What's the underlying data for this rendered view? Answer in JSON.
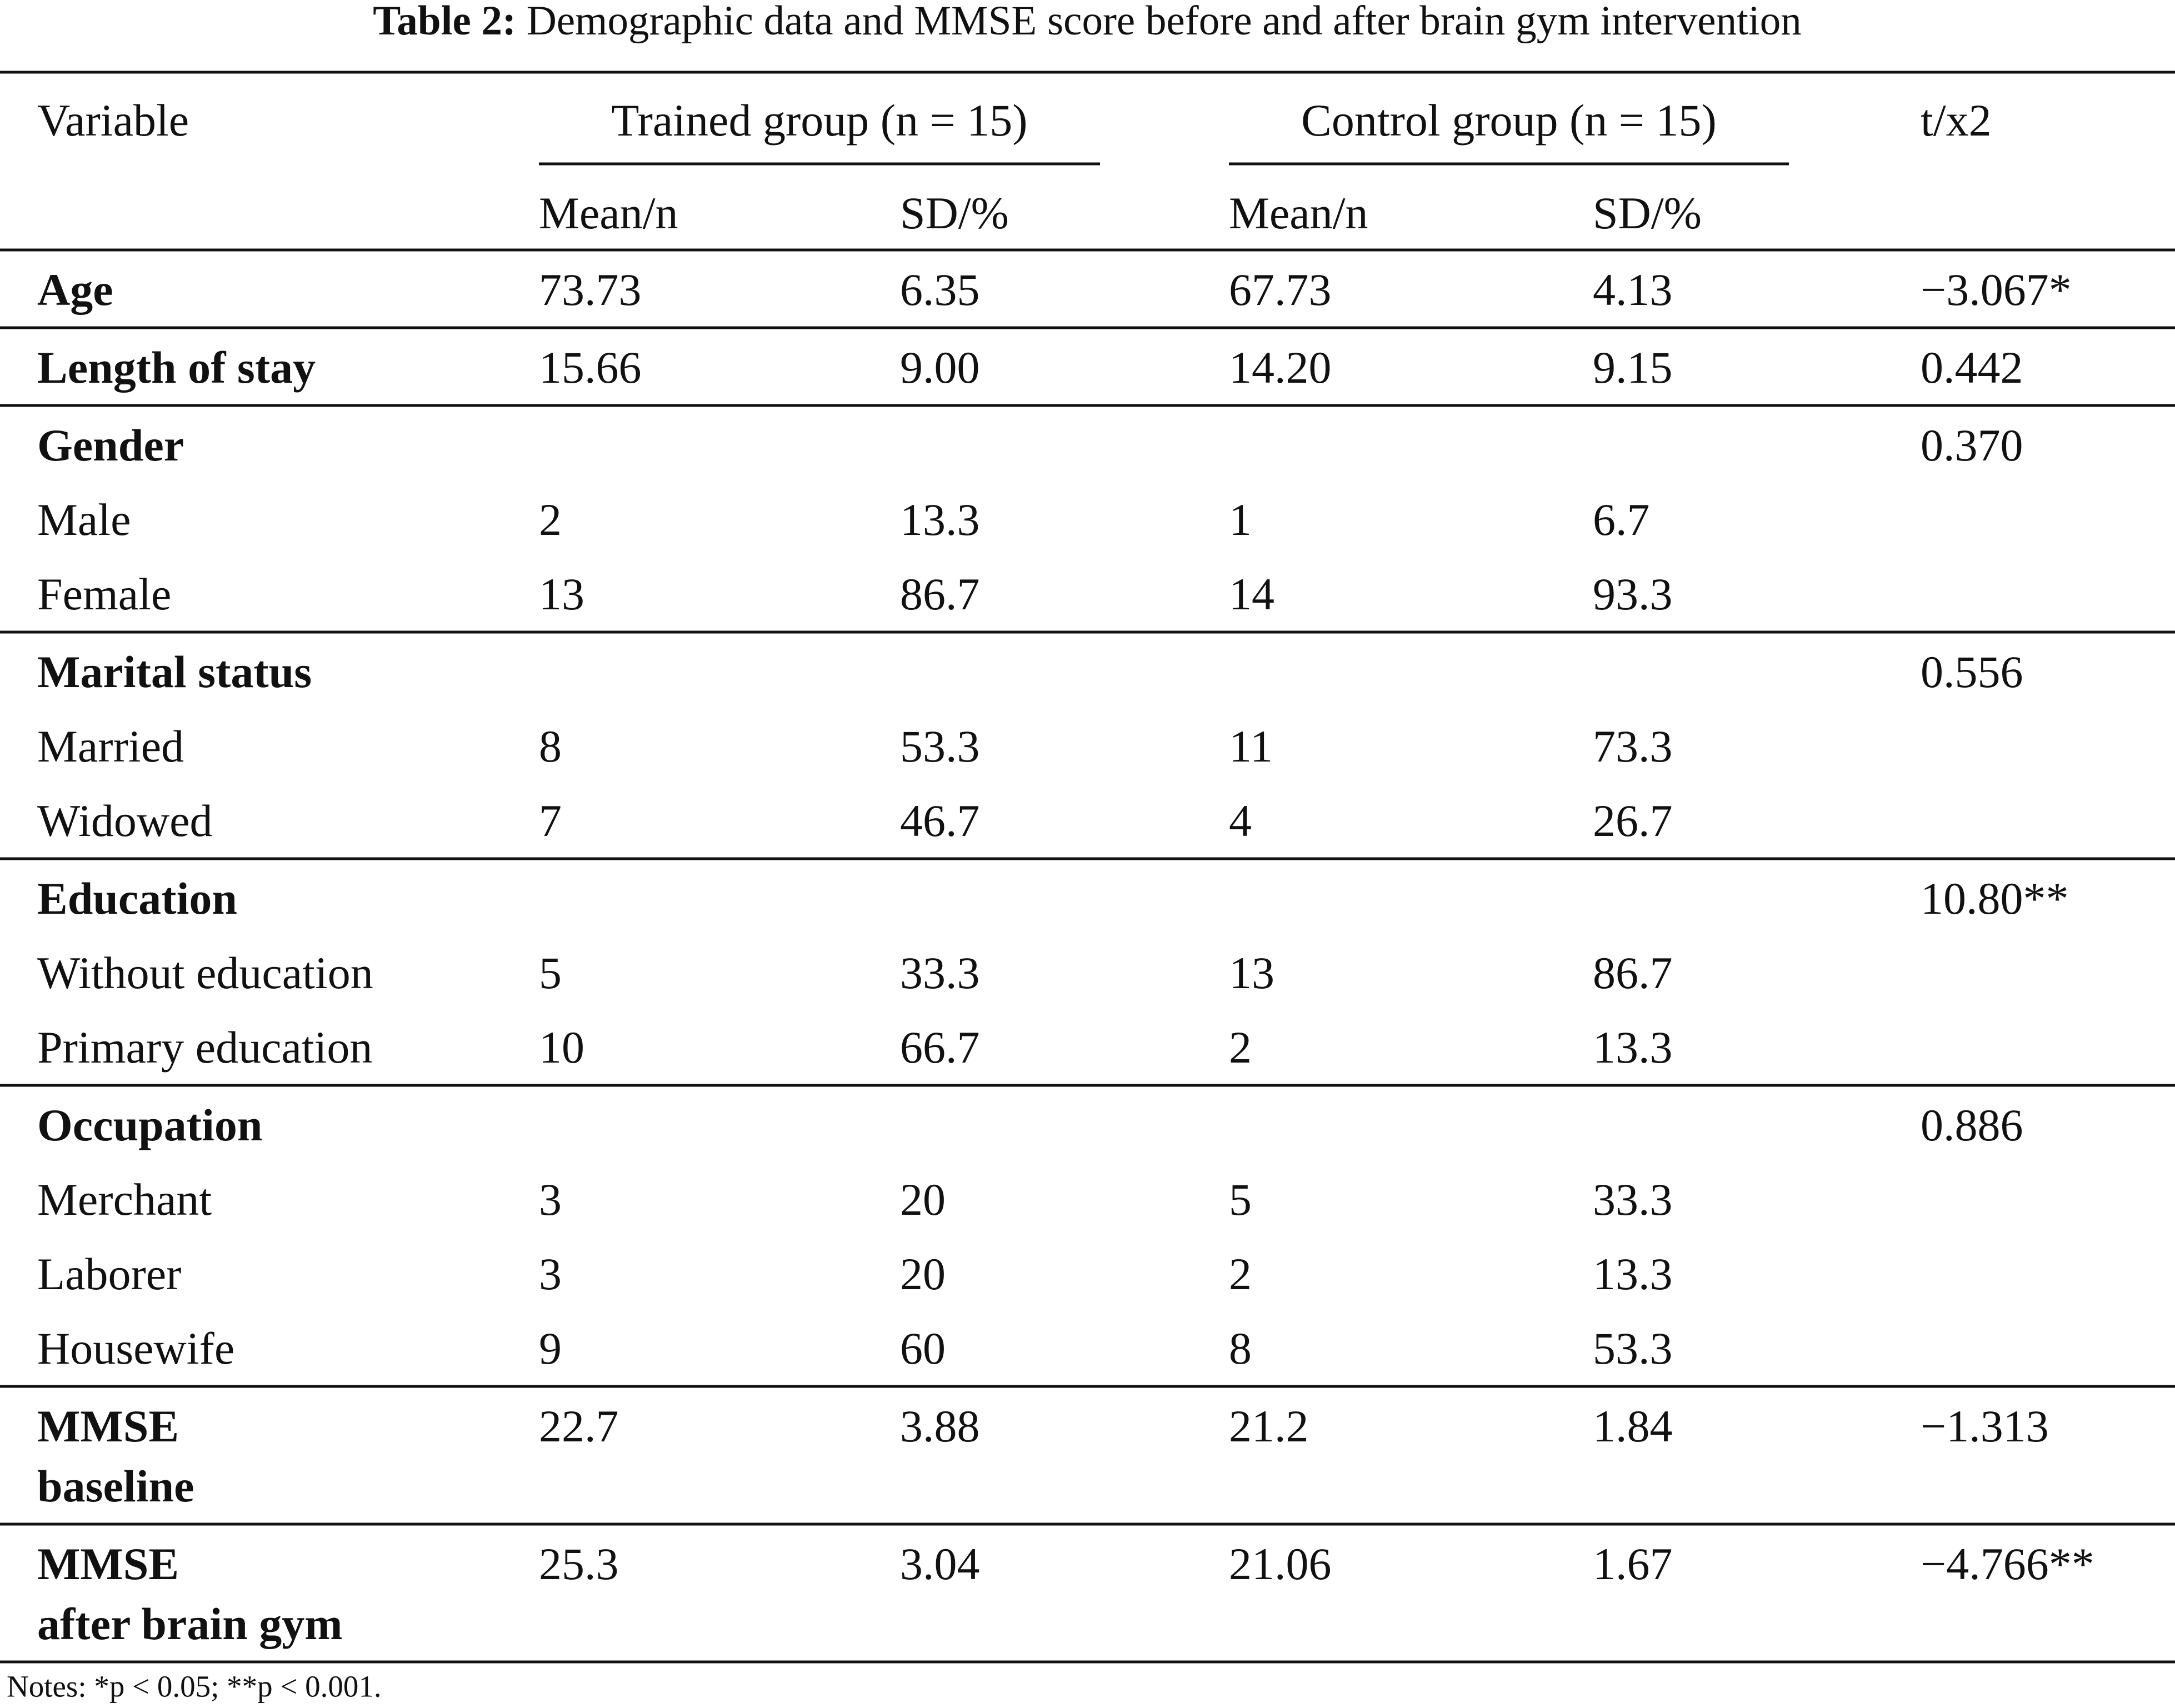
{
  "table": {
    "title_prefix": "Table 2:",
    "title": "Demographic data and MMSE score before and after brain gym intervention",
    "variable_header": "Variable",
    "group_headers": [
      "Trained group (n = 15)",
      "Control group (n = 15)"
    ],
    "sub_headers": [
      "Mean/n",
      "SD/%",
      "Mean/n",
      "SD/%"
    ],
    "stat_header": "t/x2",
    "sections": [
      {
        "label": [
          "Age"
        ],
        "values": [
          "73.73",
          "6.35",
          "67.73",
          "4.13"
        ],
        "stat": "−3.067*"
      },
      {
        "label": [
          "Length of stay"
        ],
        "values": [
          "15.66",
          "9.00",
          "14.20",
          "9.15"
        ],
        "stat": "0.442"
      },
      {
        "label": [
          "Gender"
        ],
        "stat": "0.370",
        "rows": [
          {
            "label": "Male",
            "values": [
              "2",
              "13.3",
              "1",
              "6.7"
            ]
          },
          {
            "label": "Female",
            "values": [
              "13",
              "86.7",
              "14",
              "93.3"
            ]
          }
        ]
      },
      {
        "label": [
          "Marital status"
        ],
        "stat": "0.556",
        "rows": [
          {
            "label": "Married",
            "values": [
              "8",
              "53.3",
              "11",
              "73.3"
            ]
          },
          {
            "label": "Widowed",
            "values": [
              "7",
              "46.7",
              "4",
              "26.7"
            ]
          }
        ]
      },
      {
        "label": [
          "Education"
        ],
        "stat": "10.80**",
        "rows": [
          {
            "label": "Without education",
            "values": [
              "5",
              "33.3",
              "13",
              "86.7"
            ]
          },
          {
            "label": "Primary education",
            "values": [
              "10",
              "66.7",
              "2",
              "13.3"
            ]
          }
        ]
      },
      {
        "label": [
          "Occupation"
        ],
        "stat": "0.886",
        "rows": [
          {
            "label": "Merchant",
            "values": [
              "3",
              "20",
              "5",
              "33.3"
            ]
          },
          {
            "label": "Laborer",
            "values": [
              "3",
              "20",
              "2",
              "13.3"
            ]
          },
          {
            "label": "Housewife",
            "values": [
              "9",
              "60",
              "8",
              "53.3"
            ]
          }
        ]
      },
      {
        "label": [
          "MMSE",
          "baseline"
        ],
        "values": [
          "22.7",
          "3.88",
          "21.2",
          "1.84"
        ],
        "stat": "−1.313"
      },
      {
        "label": [
          "MMSE",
          "after brain gym"
        ],
        "values": [
          "25.3",
          "3.04",
          "21.06",
          "1.67"
        ],
        "stat": "−4.766**"
      }
    ],
    "notes": "Notes: *p < 0.05; **p < 0.001."
  }
}
